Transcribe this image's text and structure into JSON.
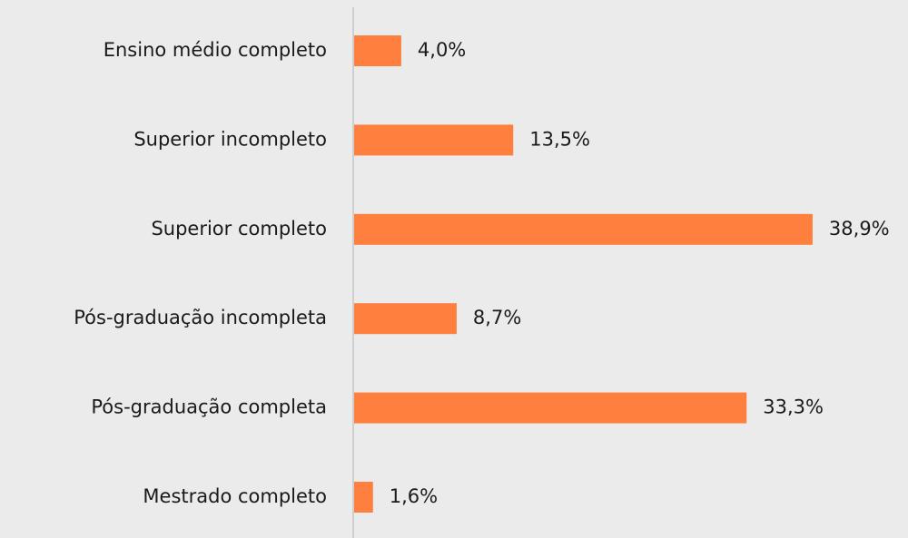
{
  "chart_data": {
    "type": "bar",
    "orientation": "horizontal",
    "categories": [
      "Ensino médio completo",
      "Superior incompleto",
      "Superior completo",
      "Pós-graduação incompleta",
      "Pós-graduação completa",
      "Mestrado completo"
    ],
    "values": [
      4.0,
      13.5,
      38.9,
      8.7,
      33.3,
      1.6
    ],
    "value_labels": [
      "4,0%",
      "13,5%",
      "38,9%",
      "8,7%",
      "33,3%",
      "1,6%"
    ],
    "color": "#ff7f3f"
  }
}
